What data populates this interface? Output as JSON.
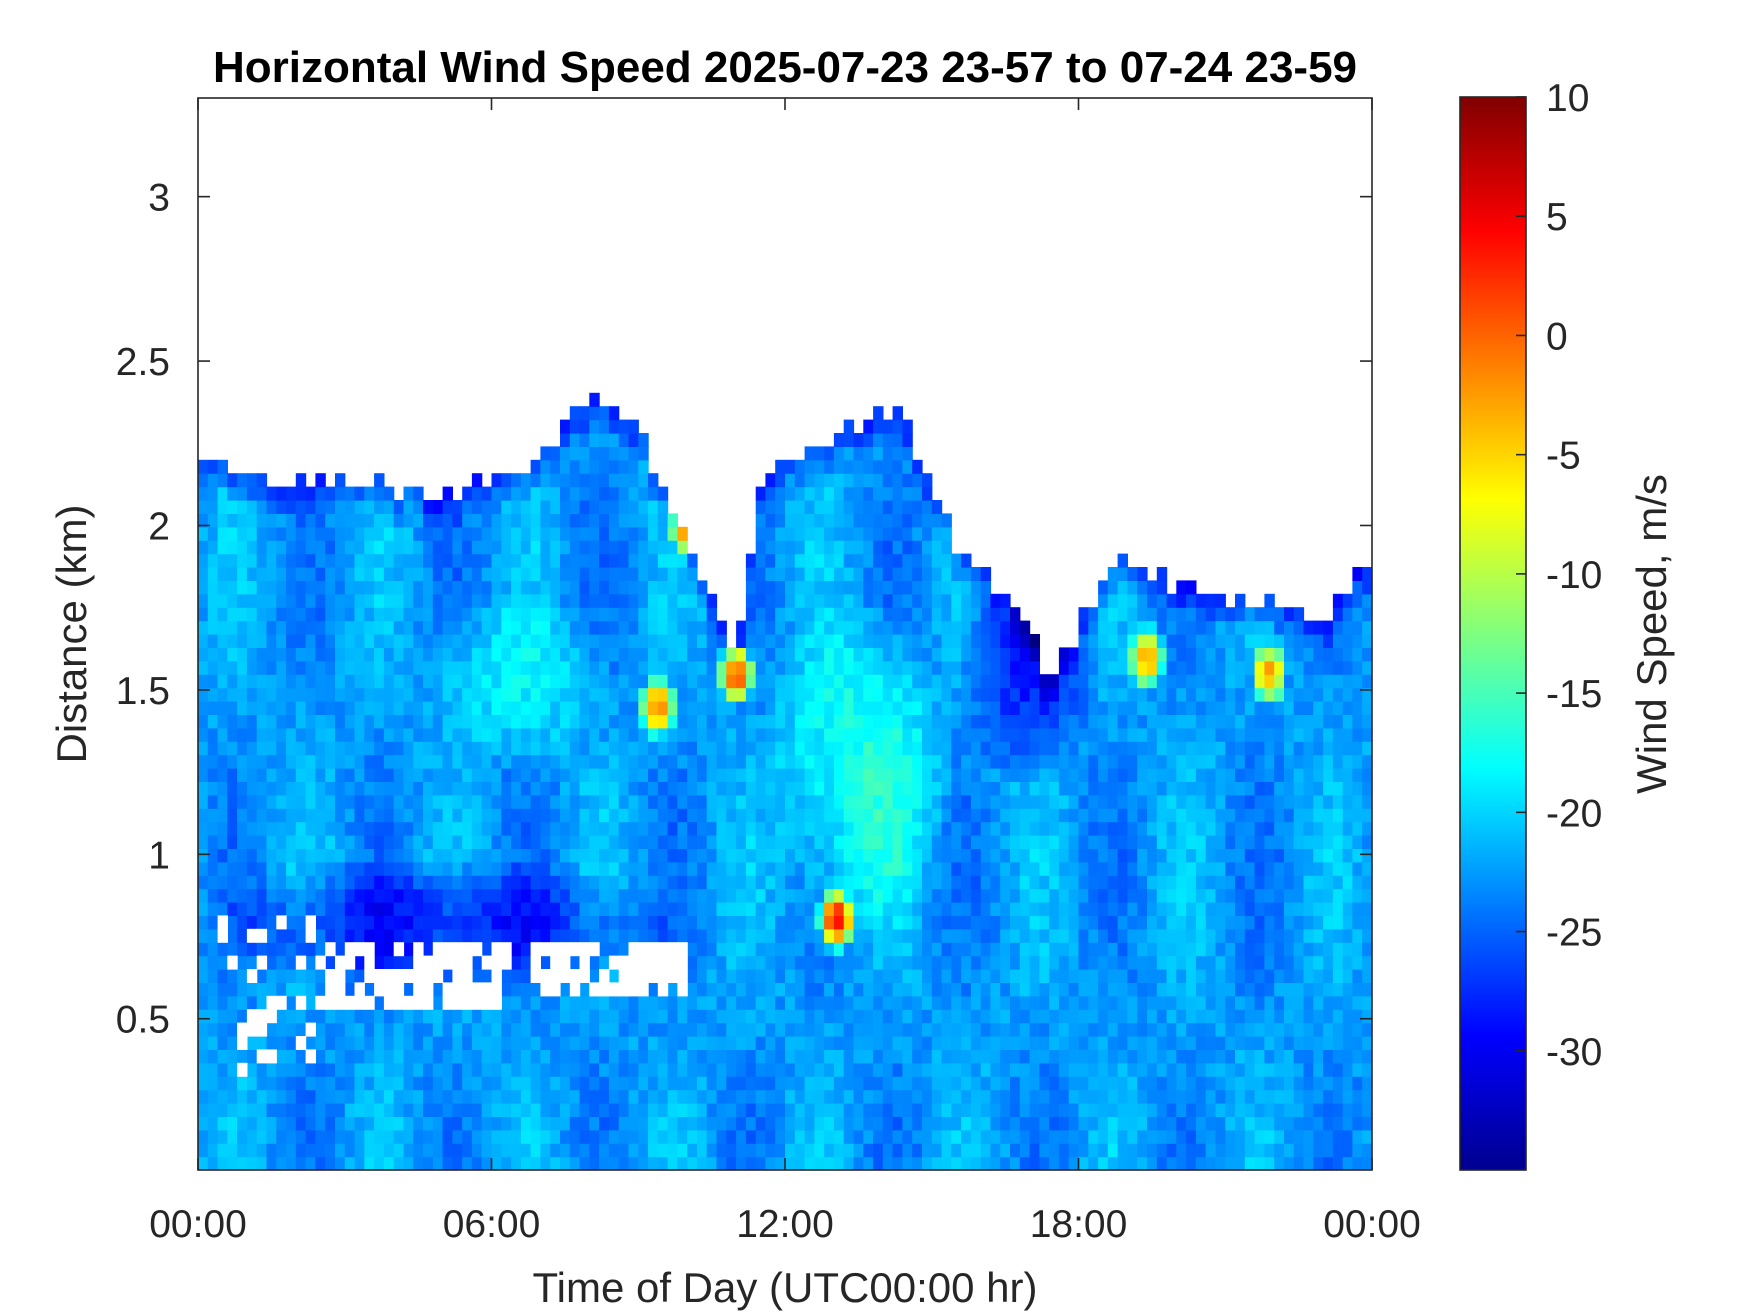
{
  "chart_data": {
    "type": "heatmap",
    "title": "Horizontal Wind Speed 2025-07-23 23-57 to 07-24 23-59",
    "xlabel": "Time of Day (UTC00:00 hr)",
    "ylabel": "Distance (km)",
    "xlim_hours": [
      0,
      24
    ],
    "ylim_km": [
      0.04,
      3.3
    ],
    "x_ticks": [
      {
        "value": 0,
        "label": "00:00"
      },
      {
        "value": 6,
        "label": "06:00"
      },
      {
        "value": 12,
        "label": "12:00"
      },
      {
        "value": 18,
        "label": "18:00"
      },
      {
        "value": 24,
        "label": "00:00"
      }
    ],
    "y_ticks": [
      {
        "value": 0.5,
        "label": "0.5"
      },
      {
        "value": 1,
        "label": "1"
      },
      {
        "value": 1.5,
        "label": "1.5"
      },
      {
        "value": 2,
        "label": "2"
      },
      {
        "value": 2.5,
        "label": "2.5"
      },
      {
        "value": 3,
        "label": "3"
      }
    ],
    "colorbar": {
      "label": "Wind Speed, m/s",
      "colormap": "jet",
      "clim": [
        -35,
        10
      ],
      "ticks": [
        {
          "value": 10,
          "label": "10"
        },
        {
          "value": 5,
          "label": "5"
        },
        {
          "value": 0,
          "label": "0"
        },
        {
          "value": -5,
          "label": "-5"
        },
        {
          "value": -10,
          "label": "-10"
        },
        {
          "value": -15,
          "label": "-15"
        },
        {
          "value": -20,
          "label": "-20"
        },
        {
          "value": -25,
          "label": "-25"
        },
        {
          "value": -30,
          "label": "-30"
        }
      ]
    },
    "data_top_km": {
      "hours": [
        0,
        1,
        2,
        3,
        4,
        5,
        6,
        7,
        7.5,
        8,
        8.5,
        9,
        9.5,
        10,
        10.5,
        11,
        11.5,
        12,
        12.5,
        13,
        13.5,
        14,
        14.5,
        15,
        15.5,
        16,
        16.5,
        17,
        17.5,
        18,
        18.5,
        19,
        20,
        21,
        22,
        23,
        24
      ],
      "km": [
        2.22,
        2.16,
        2.12,
        2.15,
        2.12,
        2.1,
        2.15,
        2.22,
        2.3,
        2.38,
        2.35,
        2.3,
        2.1,
        1.95,
        1.75,
        1.6,
        2.15,
        2.2,
        2.22,
        2.25,
        2.3,
        2.35,
        2.3,
        2.12,
        1.95,
        1.88,
        1.8,
        1.65,
        1.55,
        1.7,
        1.85,
        1.9,
        1.82,
        1.78,
        1.75,
        1.72,
        1.9
      ]
    },
    "features": [
      {
        "kind": "gap",
        "hours": [
          0.4,
          2.5
        ],
        "km": [
          0.3,
          0.82
        ],
        "note": "scattered missing values"
      },
      {
        "kind": "gap",
        "hours": [
          2.5,
          6.3
        ],
        "km": [
          0.52,
          0.72
        ],
        "note": "missing-data patch"
      },
      {
        "kind": "gap",
        "hours": [
          6.8,
          10.0
        ],
        "km": [
          0.56,
          0.72
        ],
        "note": "missing-data patch"
      },
      {
        "kind": "hotspot",
        "hour": 10.0,
        "km": 2.0,
        "value": 3
      },
      {
        "kind": "hotspot",
        "hour": 11.0,
        "km": 1.55,
        "value": 4
      },
      {
        "kind": "hotspot",
        "hour": 9.4,
        "km": 1.45,
        "value": 0
      },
      {
        "kind": "hotspot",
        "hour": 13.05,
        "km": 0.8,
        "value": 5
      },
      {
        "kind": "hotspot",
        "hour": 19.4,
        "km": 1.6,
        "value": -2
      },
      {
        "kind": "hotspot",
        "hour": 21.9,
        "km": 1.55,
        "value": -3
      },
      {
        "kind": "slow_region",
        "hours": [
          11.5,
          15.5
        ],
        "km": [
          0.7,
          1.8
        ],
        "value": -17
      },
      {
        "kind": "slow_region",
        "hours": [
          4.5,
          8.5
        ],
        "km": [
          1.25,
          1.8
        ],
        "value": -19
      },
      {
        "kind": "fast_region",
        "hours": [
          0,
          10
        ],
        "km": [
          0.55,
          1.0
        ],
        "value": -28
      },
      {
        "kind": "fast_region",
        "hours": [
          15.5,
          18.5
        ],
        "km": [
          1.2,
          2.0
        ],
        "value": -28
      }
    ]
  }
}
